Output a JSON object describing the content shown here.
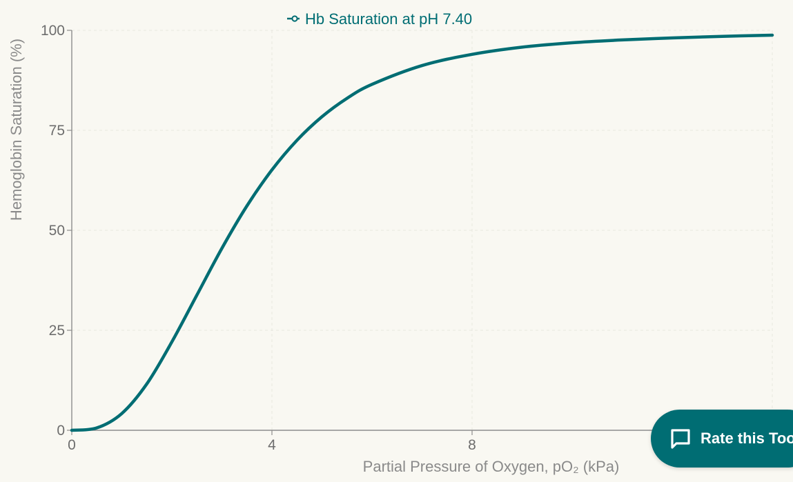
{
  "colors": {
    "accent": "#006d73",
    "background": "#f9f8f2",
    "axis": "#8c8c8c",
    "grid": "#e8e7df"
  },
  "chart_data": {
    "type": "line",
    "title": "",
    "xlabel": "Partial Pressure of Oxygen, pO₂ (kPa)",
    "ylabel": "Hemoglobin Saturation (%)",
    "xlim": [
      0,
      14
    ],
    "ylim": [
      0,
      100
    ],
    "xticks": [
      "0",
      "4",
      "8"
    ],
    "yticks": [
      "0",
      "25",
      "50",
      "75",
      "100"
    ],
    "grid": true,
    "legend_position": "top",
    "series": [
      {
        "name": "Hb Saturation at pH 7.40",
        "color": "#006d73",
        "x": [
          0,
          0.5,
          1,
          1.5,
          2,
          2.5,
          3,
          3.5,
          4,
          4.5,
          5,
          5.5,
          6,
          7,
          8,
          9,
          10,
          11,
          12,
          13,
          14
        ],
        "y": [
          0,
          0.6,
          4.2,
          11.6,
          22.1,
          33.8,
          45.5,
          56.1,
          65.1,
          72.5,
          78.4,
          83.0,
          86.5,
          91.2,
          94.0,
          95.8,
          96.9,
          97.6,
          98.1,
          98.5,
          98.8
        ]
      }
    ]
  },
  "feedback_button": {
    "label": "Rate this Tool",
    "icon": "chat-bubble-icon"
  }
}
